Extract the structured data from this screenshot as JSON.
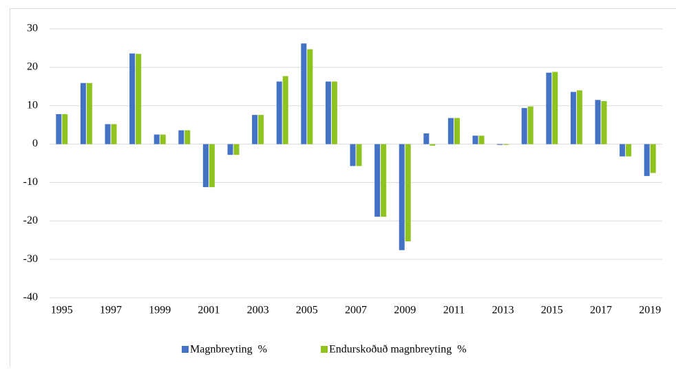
{
  "chart_data": {
    "type": "bar",
    "categories": [
      "1995",
      null,
      "1997",
      null,
      "1999",
      null,
      "2001",
      null,
      "2003",
      null,
      "2005",
      null,
      "2007",
      null,
      "2009",
      null,
      "2011",
      null,
      "2013",
      null,
      "2015",
      null,
      "2017",
      null,
      "2019"
    ],
    "series": [
      {
        "name": "Magnbreyting  %",
        "color": "#4472c4",
        "values": [
          7.8,
          15.9,
          5.2,
          23.6,
          2.5,
          3.6,
          -11.2,
          -2.8,
          7.6,
          16.3,
          26.2,
          16.3,
          -5.7,
          -18.9,
          -27.6,
          2.8,
          6.8,
          2.2,
          -0.2,
          9.4,
          18.6,
          13.6,
          11.5,
          -3.2,
          -8.3
        ]
      },
      {
        "name": "Endurskoðuð magnbreyting  %",
        "color": "#8fc31f",
        "values": [
          7.8,
          15.9,
          5.2,
          23.5,
          2.5,
          3.6,
          -11.2,
          -2.8,
          7.6,
          17.7,
          24.7,
          16.3,
          -5.7,
          -18.9,
          -25.3,
          -0.4,
          6.8,
          2.2,
          -0.2,
          9.8,
          18.8,
          14.0,
          11.2,
          -3.2,
          -7.5
        ]
      }
    ],
    "ylim": [
      -40,
      30
    ],
    "yticks": [
      -40,
      -30,
      -20,
      -10,
      0,
      10,
      20,
      30
    ],
    "grid": true,
    "legend": "bottom"
  }
}
